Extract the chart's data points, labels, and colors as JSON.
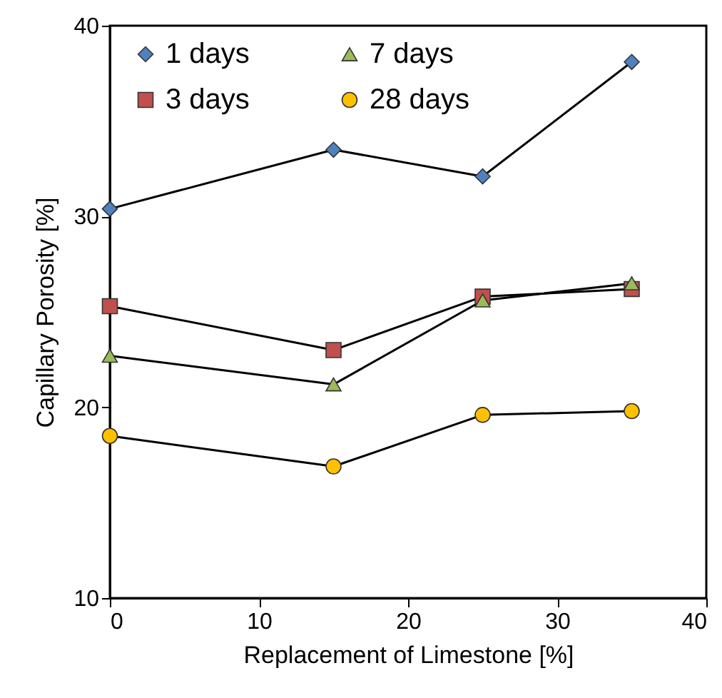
{
  "chart_data": {
    "type": "line",
    "xlabel": "Replacement of Limestone [%]",
    "ylabel": "Capillary Porosity [%]",
    "x": [
      0,
      15,
      25,
      35
    ],
    "series": [
      {
        "name": "1 days",
        "color": "#4f81bd",
        "marker": "diamond",
        "values": [
          30.4,
          33.5,
          32.1,
          38.1
        ]
      },
      {
        "name": "3 days",
        "color": "#c0504d",
        "marker": "square",
        "values": [
          25.3,
          23.0,
          25.8,
          26.2
        ]
      },
      {
        "name": "7 days",
        "color": "#9bbb59",
        "marker": "triangle",
        "values": [
          22.7,
          21.2,
          25.6,
          26.5
        ]
      },
      {
        "name": "28 days",
        "color": "#ffc000",
        "marker": "circle",
        "values": [
          18.5,
          16.9,
          19.6,
          19.8
        ]
      }
    ],
    "xlim": [
      0,
      40
    ],
    "xticks": [
      0,
      10,
      20,
      30,
      40
    ],
    "ylim": [
      10,
      40
    ],
    "yticks": [
      10,
      20,
      30,
      40
    ],
    "grid": false,
    "legend": "top left",
    "line_style": "solid"
  }
}
